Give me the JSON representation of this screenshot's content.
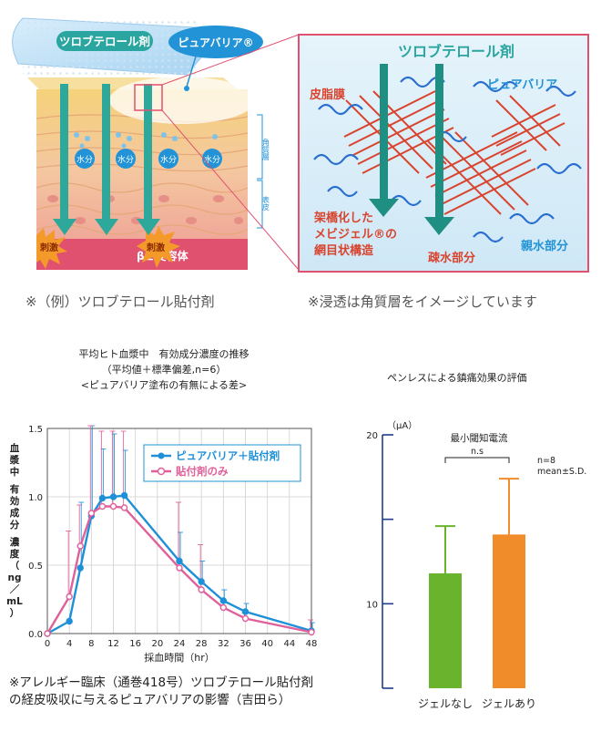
{
  "illustration": {
    "patch_label": "ツロブテロール剤",
    "barrier_badge": "ピュアバリア®",
    "moisture_label": "水分",
    "stimulus_label": "刺激",
    "receptor_label": "β２受容体",
    "layer_labels": {
      "stratum_corneum": "角質層",
      "epidermis": "表皮"
    },
    "zoom": {
      "title": "ツロブテロール剤",
      "sebum": "皮脂膜",
      "barrier": "ピュアバリア",
      "crosslinked": [
        "架橋化した",
        "メビジェル®の",
        "網目状構造"
      ],
      "hydrophobic": "疎水部分",
      "hydrophilic": "親水部分"
    },
    "captions": {
      "left": "※（例）ツロブテロール貼付剤",
      "right": "※浸透は角質層をイメージしています"
    }
  },
  "left_chart_data": {
    "type": "line",
    "title_lines": [
      "平均ヒト血漿中　有効成分濃度の推移",
      "（平均値＋標準偏差,n=6）",
      "<ピュアバリア塗布の有無による差>"
    ],
    "ylabel": "血漿中 有効成分 濃度（ng/mL）",
    "ylabel_chars": [
      "血",
      "漿",
      "中",
      "",
      "有",
      "効",
      "成",
      "分",
      "",
      "濃",
      "度",
      "（",
      "ng",
      "／",
      "mL",
      "）"
    ],
    "xlabel": "採血時間（hr）",
    "x_ticks": [
      "0",
      "4",
      "8",
      "12",
      "16",
      "20",
      "24",
      "28",
      "32",
      "36",
      "40",
      "44",
      "48"
    ],
    "y_ticks": [
      "0.0",
      "0.5",
      "1.0",
      "1.5"
    ],
    "xlim": [
      0,
      48
    ],
    "ylim": [
      0,
      1.5
    ],
    "x": [
      0,
      4,
      6,
      8,
      10,
      12,
      14,
      24,
      28,
      32,
      36,
      48
    ],
    "series": [
      {
        "name": "ピュアバリア＋貼付剤",
        "color": "#1e90d8",
        "values": [
          0,
          0.09,
          0.48,
          0.86,
          0.99,
          1.0,
          1.01,
          0.53,
          0.38,
          0.24,
          0.16,
          0.02
        ],
        "sd": [
          0,
          0,
          0.48,
          0.66,
          0.36,
          0.46,
          0.33,
          0.21,
          0.15,
          0.08,
          0.06,
          0.06
        ]
      },
      {
        "name": "貼付剤のみ",
        "color": "#e0609a",
        "values": [
          0,
          0.27,
          0.64,
          0.88,
          0.93,
          0.93,
          0.92,
          0.48,
          0.32,
          0.19,
          0.11,
          0.01
        ],
        "sd": [
          0,
          0.48,
          0.3,
          0.64,
          0.55,
          0.55,
          0.56,
          0.48,
          0.33,
          0.0,
          0.04,
          0.09
        ]
      }
    ],
    "reference": [
      "※アレルギー臨床（通巻418号）ツロブテロール貼付剤",
      "の経皮吸収に与えるピュアバリアの影響（吉田ら）"
    ]
  },
  "right_chart_data": {
    "type": "bar",
    "title": "ペンレスによる鎮痛効果の評価",
    "unit": "（μA）",
    "subtitle": "最小閾知電流",
    "significance": "n.s",
    "note_lines": [
      "n=8",
      "mean±S.D."
    ],
    "categories": [
      "ジェルなし",
      "ジェルあり"
    ],
    "values": [
      11.8,
      14.1
    ],
    "errors": [
      2.8,
      3.3
    ],
    "colors": [
      "#6ab42d",
      "#f08c2a"
    ],
    "y_ticks": [
      "10",
      "20"
    ],
    "ylim": [
      5,
      20
    ]
  }
}
